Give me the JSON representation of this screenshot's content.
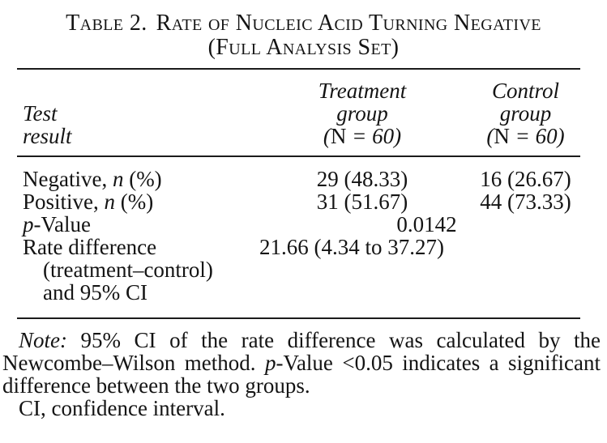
{
  "title": {
    "label": "Table 2.",
    "text": "Rate of Nucleic Acid Turning Negative",
    "line2": "(Full Analysis Set)"
  },
  "table": {
    "header": {
      "col1_line1": "Test",
      "col1_line2": "result",
      "treatment": {
        "line1": "Treatment",
        "line2": "group",
        "count_open": "(",
        "count_n": "N",
        "count_rest": " = 60)"
      },
      "control": {
        "line1": "Control",
        "line2": "group",
        "count_open": "(",
        "count_n": "N",
        "count_rest": " = 60)"
      }
    },
    "rows": {
      "negative": {
        "pre": "Negative, ",
        "it": "n",
        "post": " (%)",
        "treatment": "29 (48.33)",
        "control": "16 (26.67)"
      },
      "positive": {
        "pre": "Positive, ",
        "it": "n",
        "post": " (%)",
        "treatment": "31 (51.67)",
        "control": "44 (73.33)"
      },
      "pvalue": {
        "it": "p",
        "post": "-Value",
        "value": "0.0142"
      },
      "ratediff": {
        "line1": "Rate difference",
        "line2": "(treatment–control)",
        "line3": "and 95% CI",
        "value": "21.66 (4.34 to 37.27)"
      }
    }
  },
  "note": {
    "label": "Note:",
    "part1": " 95% CI of the rate difference was calculated by the Newcombe–Wilson method. ",
    "p_it": "p",
    "part2": "-Value <0.05 indicates a significant difference between the two groups.",
    "line2": "CI, confidence interval."
  },
  "colors": {
    "text": "#141414",
    "background": "#ffffff",
    "rule": "#1b1b1b"
  }
}
